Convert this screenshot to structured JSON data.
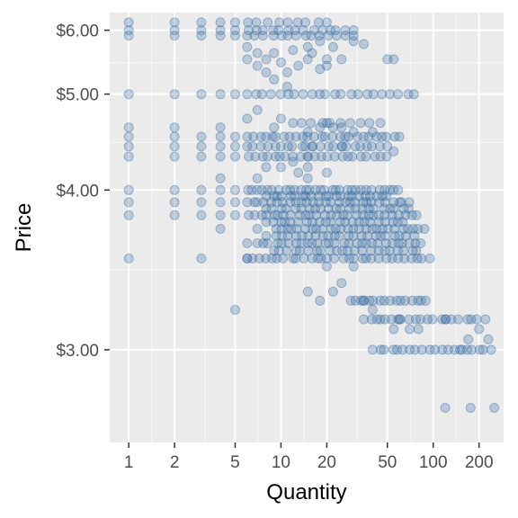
{
  "chart_data": {
    "type": "scatter",
    "xlabel": "Quantity",
    "ylabel": "Price",
    "x_scale": "log10",
    "y_scale": "reciprocal",
    "xlim": [
      0.75,
      290
    ],
    "ylim": [
      2.62,
      6.35
    ],
    "x_ticks": [
      {
        "value": 1,
        "label": "1"
      },
      {
        "value": 2,
        "label": "2"
      },
      {
        "value": 5,
        "label": "5"
      },
      {
        "value": 10,
        "label": "10"
      },
      {
        "value": 20,
        "label": "20"
      },
      {
        "value": 50,
        "label": "50"
      },
      {
        "value": 100,
        "label": "100"
      },
      {
        "value": 200,
        "label": "200"
      }
    ],
    "x_minor_ticks": [
      1.414,
      3.162,
      7.071,
      14.14,
      31.62,
      70.71,
      141.4
    ],
    "y_ticks": [
      {
        "value": 3,
        "label": "$3.00"
      },
      {
        "value": 4,
        "label": "$4.00"
      },
      {
        "value": 5,
        "label": "$5.00"
      },
      {
        "value": 6,
        "label": "$6.00"
      }
    ],
    "y_minor_ticks": [
      3.43,
      4.44,
      5.45
    ],
    "grid": true,
    "legend": "none",
    "colors": {
      "panel_background": "#ebebeb",
      "grid_major": "#ffffff",
      "grid_minor": "#f7f7f7",
      "point": "#3a6ea5",
      "tick_text": "#4d4d4d",
      "axis_title": "#000000"
    },
    "point_alpha": 0.28,
    "series": [
      {
        "values": [
          [
            1,
            6.15
          ],
          [
            1,
            6.0
          ],
          [
            1,
            5.9
          ],
          [
            1,
            5.0
          ],
          [
            1,
            4.6
          ],
          [
            1,
            4.5
          ],
          [
            1,
            4.4
          ],
          [
            1,
            4.3
          ],
          [
            1,
            4.0
          ],
          [
            1,
            3.9
          ],
          [
            1,
            3.8
          ],
          [
            1,
            3.5
          ],
          [
            2,
            6.15
          ],
          [
            2,
            6.0
          ],
          [
            2,
            5.9
          ],
          [
            2,
            5.0
          ],
          [
            2,
            4.6
          ],
          [
            2,
            4.5
          ],
          [
            2,
            4.4
          ],
          [
            2,
            4.3
          ],
          [
            2,
            4.0
          ],
          [
            2,
            3.9
          ],
          [
            2,
            3.8
          ],
          [
            3,
            6.15
          ],
          [
            3,
            6.0
          ],
          [
            3,
            5.9
          ],
          [
            3,
            5.0
          ],
          [
            3,
            4.5
          ],
          [
            3,
            4.4
          ],
          [
            3,
            4.3
          ],
          [
            3,
            4.0
          ],
          [
            3,
            3.9
          ],
          [
            3,
            3.8
          ],
          [
            3,
            3.5
          ],
          [
            4,
            6.15
          ],
          [
            4,
            6.0
          ],
          [
            4,
            5.9
          ],
          [
            4,
            5.0
          ],
          [
            4,
            4.6
          ],
          [
            4,
            4.5
          ],
          [
            4,
            4.4
          ],
          [
            4,
            4.3
          ],
          [
            4,
            4.1
          ],
          [
            4,
            4.0
          ],
          [
            4,
            3.9
          ],
          [
            4,
            3.8
          ],
          [
            4,
            3.7
          ],
          [
            5,
            6.15
          ],
          [
            5,
            6.0
          ],
          [
            5,
            5.9
          ],
          [
            5,
            5.0
          ],
          [
            5,
            4.5
          ],
          [
            5,
            4.4
          ],
          [
            5,
            4.3
          ],
          [
            5,
            4.0
          ],
          [
            5,
            3.9
          ],
          [
            5,
            3.8
          ],
          [
            5,
            3.2
          ],
          [
            6,
            5.7
          ],
          [
            6,
            5.5
          ],
          [
            6,
            4.7
          ],
          [
            6,
            3.6
          ],
          [
            6,
            3.5
          ],
          [
            7,
            5.6
          ],
          [
            7,
            5.4
          ],
          [
            7,
            4.8
          ],
          [
            7,
            4.1
          ],
          [
            7,
            3.7
          ],
          [
            8,
            5.5
          ],
          [
            8,
            5.3
          ],
          [
            8,
            4.2
          ],
          [
            8,
            3.65
          ],
          [
            9,
            5.6
          ],
          [
            9,
            5.2
          ],
          [
            9,
            4.6
          ],
          [
            10,
            5.45
          ],
          [
            10,
            4.7
          ],
          [
            10,
            4.2
          ],
          [
            11,
            5.3
          ],
          [
            11,
            5.1
          ],
          [
            12,
            5.65
          ],
          [
            12,
            4.25
          ],
          [
            13,
            5.4
          ],
          [
            13,
            4.15
          ],
          [
            15,
            5.7
          ],
          [
            15,
            5.5
          ],
          [
            15,
            4.55
          ],
          [
            15,
            4.3
          ],
          [
            15,
            4.2
          ],
          [
            15,
            4.1
          ],
          [
            15,
            3.3
          ],
          [
            16,
            5.6
          ],
          [
            16,
            4.4
          ],
          [
            18,
            5.8
          ],
          [
            18,
            5.35
          ],
          [
            18,
            4.6
          ],
          [
            18,
            3.25
          ],
          [
            20,
            5.5
          ],
          [
            20,
            5.4
          ],
          [
            20,
            4.65
          ],
          [
            20,
            4.15
          ],
          [
            20,
            3.45
          ],
          [
            22,
            5.7
          ],
          [
            22,
            4.6
          ],
          [
            22,
            3.3
          ],
          [
            25,
            5.5
          ],
          [
            25,
            4.6
          ],
          [
            25,
            4.4
          ],
          [
            25,
            3.35
          ],
          [
            30,
            5.8
          ],
          [
            30,
            4.55
          ],
          [
            30,
            3.45
          ],
          [
            35,
            5.75
          ],
          [
            35,
            3.25
          ],
          [
            40,
            4.55
          ],
          [
            40,
            3.2
          ],
          [
            45,
            3.15
          ],
          [
            50,
            5.5
          ],
          [
            55,
            5.5
          ],
          [
            55,
            4.35
          ],
          [
            55,
            3.1
          ],
          [
            60,
            3.15
          ],
          [
            70,
            3.1
          ],
          [
            80,
            3.1
          ],
          [
            120,
            3.15
          ],
          [
            150,
            3.0
          ],
          [
            170,
            3.05
          ],
          [
            200,
            3.1
          ],
          [
            230,
            3.05
          ]
        ],
        "bands": [
          {
            "price": 6.15,
            "x_from": 6,
            "x_to": 20,
            "count": 9
          },
          {
            "price": 6.0,
            "x_from": 6,
            "x_to": 30,
            "count": 14
          },
          {
            "price": 5.9,
            "x_from": 6,
            "x_to": 30,
            "count": 14
          },
          {
            "price": 5.0,
            "x_from": 6,
            "x_to": 75,
            "count": 22
          },
          {
            "price": 4.65,
            "x_from": 12,
            "x_to": 45,
            "count": 10
          },
          {
            "price": 4.5,
            "x_from": 6,
            "x_to": 60,
            "count": 26
          },
          {
            "price": 4.4,
            "x_from": 6,
            "x_to": 50,
            "count": 22
          },
          {
            "price": 4.3,
            "x_from": 6,
            "x_to": 50,
            "count": 22
          },
          {
            "price": 4.0,
            "x_from": 6,
            "x_to": 60,
            "count": 30
          },
          {
            "price": 3.95,
            "x_from": 8,
            "x_to": 50,
            "count": 22
          },
          {
            "price": 3.9,
            "x_from": 6,
            "x_to": 70,
            "count": 28
          },
          {
            "price": 3.85,
            "x_from": 8,
            "x_to": 70,
            "count": 22
          },
          {
            "price": 3.8,
            "x_from": 6,
            "x_to": 80,
            "count": 28
          },
          {
            "price": 3.75,
            "x_from": 8,
            "x_to": 65,
            "count": 22
          },
          {
            "price": 3.7,
            "x_from": 9,
            "x_to": 90,
            "count": 26
          },
          {
            "price": 3.65,
            "x_from": 9,
            "x_to": 75,
            "count": 22
          },
          {
            "price": 3.6,
            "x_from": 7,
            "x_to": 85,
            "count": 28
          },
          {
            "price": 3.55,
            "x_from": 9,
            "x_to": 80,
            "count": 22
          },
          {
            "price": 3.5,
            "x_from": 6,
            "x_to": 95,
            "count": 30
          },
          {
            "price": 3.25,
            "x_from": 28,
            "x_to": 90,
            "count": 16
          },
          {
            "price": 3.15,
            "x_from": 35,
            "x_to": 220,
            "count": 20
          },
          {
            "price": 3.0,
            "x_from": 40,
            "x_to": 240,
            "count": 20
          },
          {
            "price": 2.75,
            "x_from": 120,
            "x_to": 260,
            "count": 3
          }
        ]
      }
    ]
  }
}
